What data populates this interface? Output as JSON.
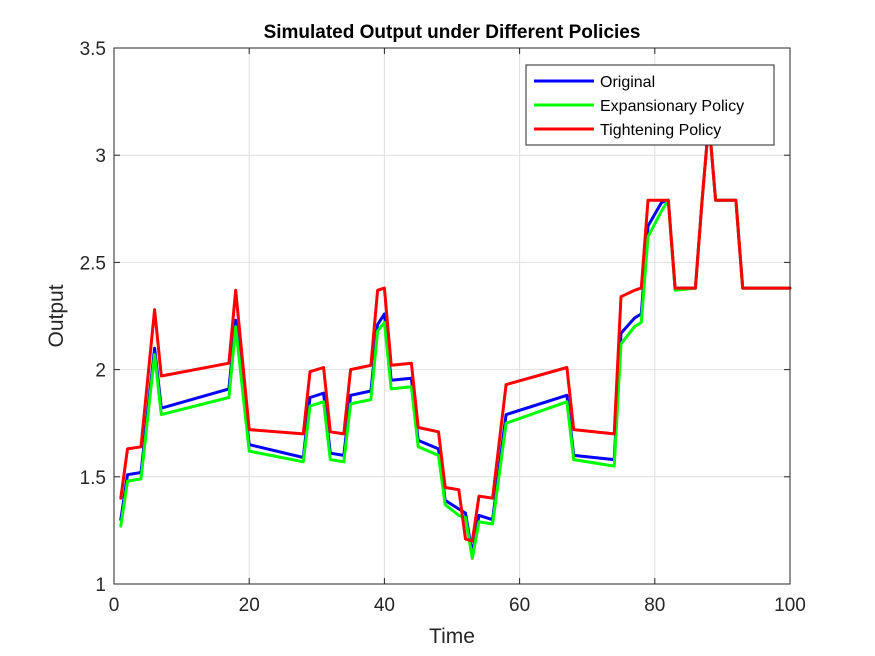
{
  "chart_data": {
    "type": "line",
    "title": "Simulated Output under Different Policies",
    "xlabel": "Time",
    "ylabel": "Output",
    "xlim": [
      0,
      100
    ],
    "ylim": [
      1,
      3.5
    ],
    "xticks": [
      0,
      20,
      40,
      60,
      80,
      100
    ],
    "yticks": [
      1,
      1.5,
      2,
      2.5,
      3,
      3.5
    ],
    "xtick_labels": [
      "0",
      "20",
      "40",
      "60",
      "80",
      "100"
    ],
    "ytick_labels": [
      "1",
      "1.5",
      "2",
      "2.5",
      "3",
      "3.5"
    ],
    "grid": true,
    "legend_position": "top-right",
    "series": [
      {
        "name": "Original",
        "color": "#0000ff",
        "x": [
          1,
          2,
          4,
          6,
          7,
          17,
          18,
          20,
          28,
          29,
          31,
          32,
          34,
          35,
          38,
          39,
          40,
          41,
          44,
          45,
          48,
          49,
          51,
          52,
          53,
          54,
          56,
          58,
          67,
          68,
          74,
          75,
          77,
          78,
          79,
          81,
          82,
          83,
          86,
          87,
          88,
          89,
          92,
          93,
          100
        ],
        "values": [
          1.3,
          1.51,
          1.52,
          2.1,
          1.82,
          1.91,
          2.23,
          1.65,
          1.59,
          1.87,
          1.89,
          1.61,
          1.6,
          1.88,
          1.9,
          2.21,
          2.26,
          1.95,
          1.96,
          1.67,
          1.63,
          1.39,
          1.35,
          1.33,
          1.14,
          1.32,
          1.3,
          1.79,
          1.88,
          1.6,
          1.58,
          2.17,
          2.24,
          2.26,
          2.67,
          2.78,
          2.79,
          2.38,
          2.38,
          2.79,
          3.16,
          2.79,
          2.79,
          2.38,
          2.38
        ]
      },
      {
        "name": "Expansionary Policy",
        "color": "#00ff00",
        "x": [
          1,
          2,
          4,
          6,
          7,
          17,
          18,
          20,
          28,
          29,
          31,
          32,
          34,
          35,
          38,
          39,
          40,
          41,
          44,
          45,
          48,
          49,
          51,
          52,
          53,
          54,
          56,
          58,
          67,
          68,
          74,
          75,
          77,
          78,
          79,
          81,
          82,
          83,
          86,
          87,
          88,
          89,
          92,
          93,
          100
        ],
        "values": [
          1.27,
          1.48,
          1.49,
          2.07,
          1.79,
          1.87,
          2.2,
          1.62,
          1.57,
          1.83,
          1.85,
          1.58,
          1.57,
          1.84,
          1.86,
          2.18,
          2.22,
          1.91,
          1.92,
          1.64,
          1.6,
          1.37,
          1.32,
          1.31,
          1.12,
          1.29,
          1.28,
          1.75,
          1.85,
          1.58,
          1.55,
          2.12,
          2.2,
          2.22,
          2.62,
          2.74,
          2.79,
          2.37,
          2.38,
          2.79,
          3.16,
          2.79,
          2.79,
          2.38,
          2.38
        ]
      },
      {
        "name": "Tightening Policy",
        "color": "#ff0000",
        "x": [
          1,
          2,
          4,
          6,
          7,
          17,
          18,
          20,
          28,
          29,
          31,
          32,
          34,
          35,
          38,
          39,
          40,
          41,
          44,
          45,
          48,
          49,
          51,
          52,
          53,
          54,
          56,
          58,
          67,
          68,
          74,
          75,
          77,
          78,
          79,
          81,
          82,
          83,
          86,
          87,
          88,
          89,
          92,
          93,
          100
        ],
        "values": [
          1.4,
          1.63,
          1.64,
          2.28,
          1.97,
          2.03,
          2.37,
          1.72,
          1.7,
          1.99,
          2.01,
          1.71,
          1.7,
          2.0,
          2.02,
          2.37,
          2.38,
          2.02,
          2.03,
          1.73,
          1.71,
          1.45,
          1.44,
          1.21,
          1.2,
          1.41,
          1.4,
          1.93,
          2.01,
          1.72,
          1.7,
          2.34,
          2.37,
          2.38,
          2.79,
          2.79,
          2.79,
          2.38,
          2.38,
          2.79,
          3.16,
          2.79,
          2.79,
          2.38,
          2.38
        ]
      }
    ]
  }
}
